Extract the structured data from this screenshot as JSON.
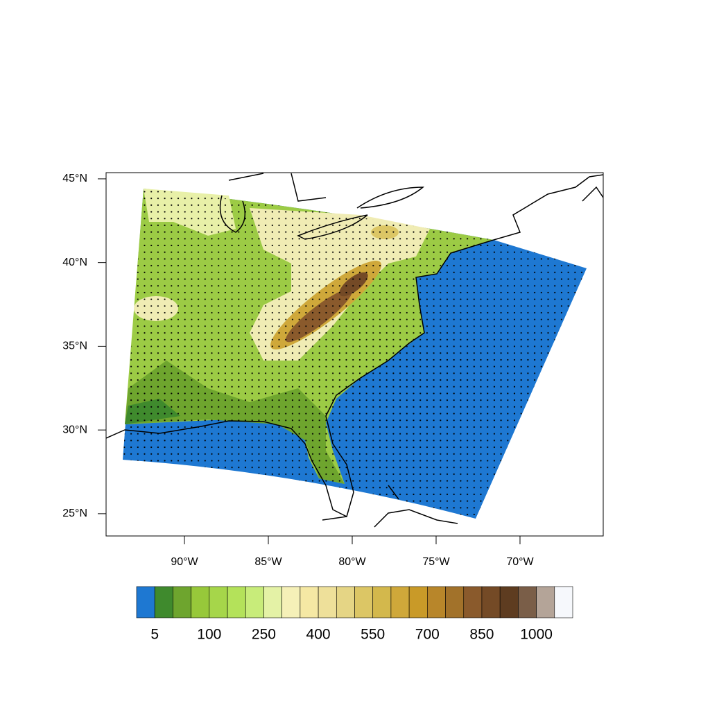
{
  "chart_data": {
    "type": "map",
    "xlim": [
      -94.67,
      -65.04
    ],
    "ylim": [
      23.67,
      45.37
    ],
    "xticks": [
      {
        "value": -90,
        "label": "90°W"
      },
      {
        "value": -85,
        "label": "85°W"
      },
      {
        "value": -80,
        "label": "80°W"
      },
      {
        "value": -75,
        "label": "75°W"
      },
      {
        "value": -70,
        "label": "70°W"
      }
    ],
    "yticks": [
      {
        "value": 25,
        "label": "25°N"
      },
      {
        "value": 30,
        "label": "30°N"
      },
      {
        "value": 35,
        "label": "35°N"
      },
      {
        "value": 40,
        "label": "40°N"
      },
      {
        "value": 45,
        "label": "45°N"
      }
    ],
    "colorbar": {
      "colors": [
        "#1e78d2",
        "#3f8a2d",
        "#6ea52e",
        "#97c83a",
        "#a6d64a",
        "#b4e25a",
        "#c8ec7a",
        "#e4f2a6",
        "#f5f0b8",
        "#f5e8a4",
        "#eee09a",
        "#e5d585",
        "#dcc665",
        "#d3b84c",
        "#cfa83a",
        "#c99a28",
        "#b8862a",
        "#a2722a",
        "#8a5a2c",
        "#744a26",
        "#5e3c20",
        "#7a5e48",
        "#b4a498",
        "#f6f8fc"
      ],
      "levels": [
        5,
        null,
        null,
        100,
        null,
        null,
        250,
        null,
        null,
        400,
        null,
        null,
        550,
        null,
        null,
        700,
        null,
        null,
        850,
        null,
        null,
        1000,
        null
      ]
    }
  }
}
